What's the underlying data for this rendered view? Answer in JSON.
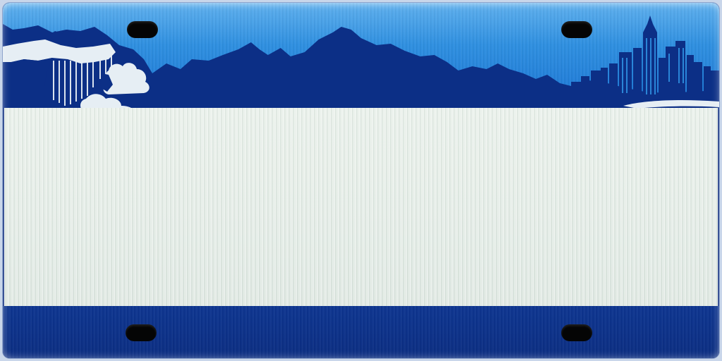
{
  "plate": {
    "colors": {
      "sky_top": "#5fb0ee",
      "sky_bottom": "#1a74d4",
      "silhouette": "#0c2f86",
      "middle_panel": "#e4ece6",
      "bottom_band": "#0b2d82",
      "mounting_hole": "#050505",
      "cloud": "#e6eef4"
    },
    "icons": {
      "waterfall": "waterfall-icon",
      "mountains": "mountain-range-icon",
      "skyline": "city-skyline-icon",
      "holes": "mounting-hole-icon"
    }
  }
}
